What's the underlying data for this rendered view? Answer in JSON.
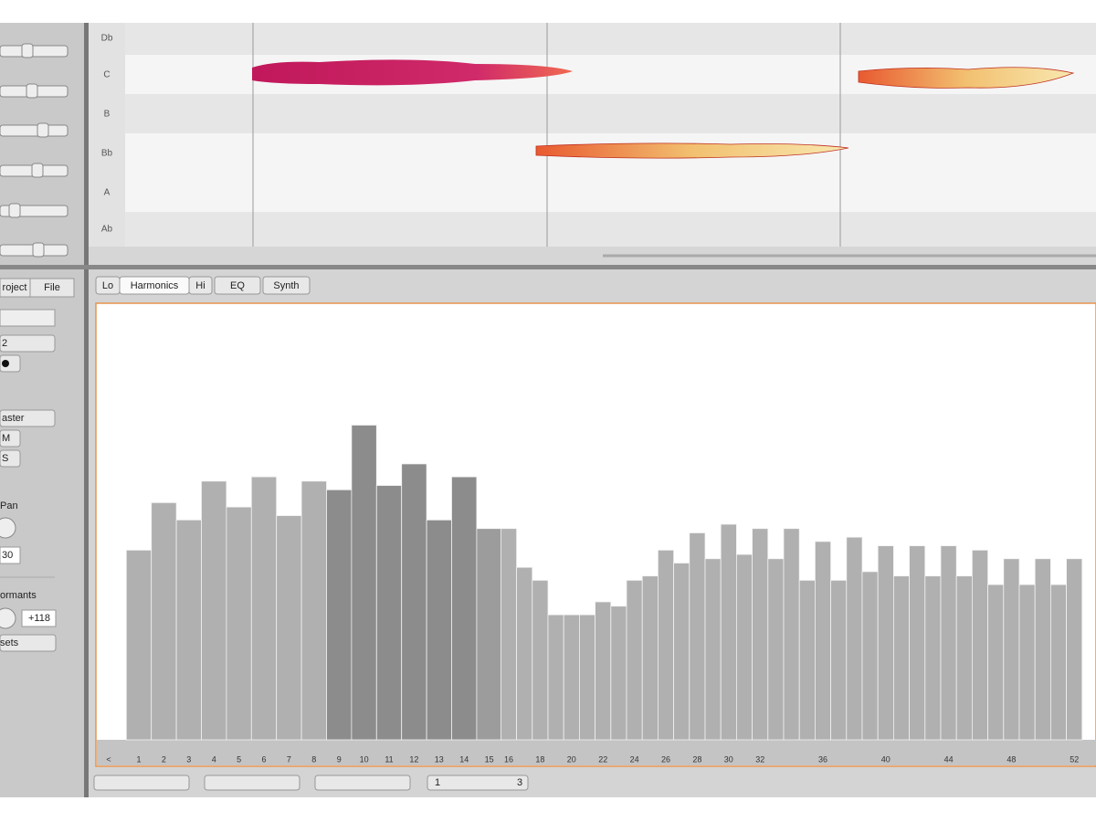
{
  "piano_roll": {
    "pitch_rows": [
      "Db",
      "C",
      "B",
      "Bb",
      "A",
      "Ab"
    ]
  },
  "editor_tabs": [
    "Lo",
    "Harmonics",
    "Hi",
    "EQ",
    "Synth"
  ],
  "left_panel": {
    "tabs": [
      "roject",
      "File"
    ],
    "fields": [
      "2",
      "aster",
      "M",
      "S",
      "Pan",
      "30",
      "ormants",
      "+118",
      "sets"
    ]
  },
  "harmonics": {
    "levels": [
      44,
      55,
      51,
      60,
      54,
      61,
      52,
      60,
      58,
      73,
      59,
      64,
      51,
      61,
      49,
      49,
      40,
      37,
      29,
      29,
      29,
      32,
      31,
      37,
      38,
      44,
      41,
      48,
      42,
      50,
      43,
      49,
      42,
      49,
      37,
      46,
      37,
      47,
      39,
      45,
      38,
      45,
      38,
      45,
      38,
      44,
      36,
      42,
      36,
      42,
      36,
      42
    ],
    "labels": [
      "<",
      "1",
      "2",
      "3",
      "4",
      "5",
      "6",
      "7",
      "8",
      "9",
      "10",
      "11",
      "12",
      "13",
      "14",
      "15",
      "16",
      "18",
      "20",
      "22",
      "24",
      "26",
      "28",
      "30",
      "32",
      "36",
      "40",
      "44",
      "48",
      "52"
    ]
  },
  "bottom_controls": [
    "1",
    "3"
  ]
}
